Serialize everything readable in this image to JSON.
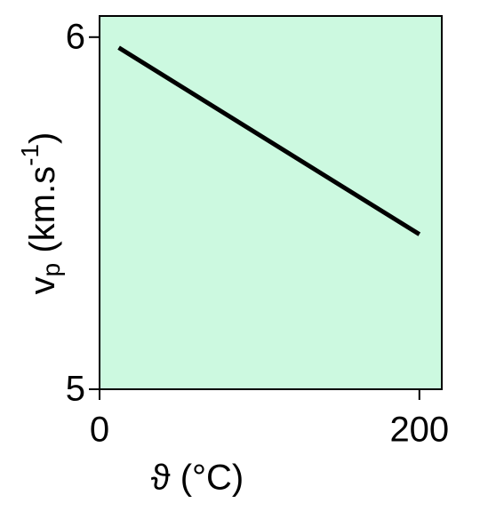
{
  "chart_data": {
    "type": "line",
    "xlabel": "ϑ (°C)",
    "ylabel": [
      "v",
      "p",
      " (km.s",
      "-1",
      ")"
    ],
    "x": [
      12,
      200
    ],
    "series": [
      {
        "color": "#000000",
        "values": [
          5.97,
          5.44
        ]
      }
    ],
    "xlim": [
      0,
      214
    ],
    "xticks": [
      0,
      200
    ],
    "ylim": [
      5,
      6.06
    ],
    "yticks": [
      5,
      6
    ],
    "background": "#ccf9e0"
  }
}
